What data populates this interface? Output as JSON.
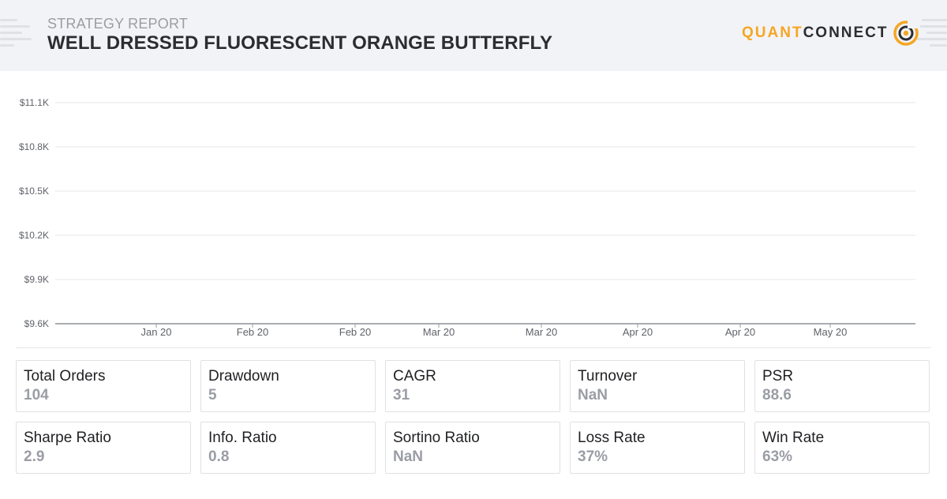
{
  "header": {
    "kicker": "STRATEGY REPORT",
    "title": "WELL DRESSED FLUORESCENT ORANGE BUTTERFLY",
    "logo_part1": "QUANT",
    "logo_part2": "CONNECT",
    "accent_color": "#f5a623",
    "logo_icon": "quantconnect-logo-icon"
  },
  "chart_data": {
    "type": "line",
    "title": "",
    "xlabel": "",
    "ylabel": "",
    "y_ticks": [
      "$11.1K",
      "$10.8K",
      "$10.5K",
      "$10.2K",
      "$9.9K",
      "$9.6K"
    ],
    "y_tick_values": [
      11100,
      10800,
      10500,
      10200,
      9900,
      9600
    ],
    "ylim": [
      9600,
      11100
    ],
    "x_ticks": [
      "Jan 20",
      "Feb 20",
      "Feb 20",
      "Mar 20",
      "Mar 20",
      "Apr 20",
      "Apr 20",
      "May 20"
    ],
    "grid": true,
    "series": []
  },
  "stats": [
    {
      "label": "Total Orders",
      "value": "104"
    },
    {
      "label": "Drawdown",
      "value": "5"
    },
    {
      "label": "CAGR",
      "value": "31"
    },
    {
      "label": "Turnover",
      "value": "NaN"
    },
    {
      "label": "PSR",
      "value": "88.6"
    },
    {
      "label": "Sharpe Ratio",
      "value": "2.9"
    },
    {
      "label": "Info. Ratio",
      "value": "0.8"
    },
    {
      "label": "Sortino Ratio",
      "value": "NaN"
    },
    {
      "label": "Loss Rate",
      "value": "37%"
    },
    {
      "label": "Win Rate",
      "value": "63%"
    }
  ]
}
